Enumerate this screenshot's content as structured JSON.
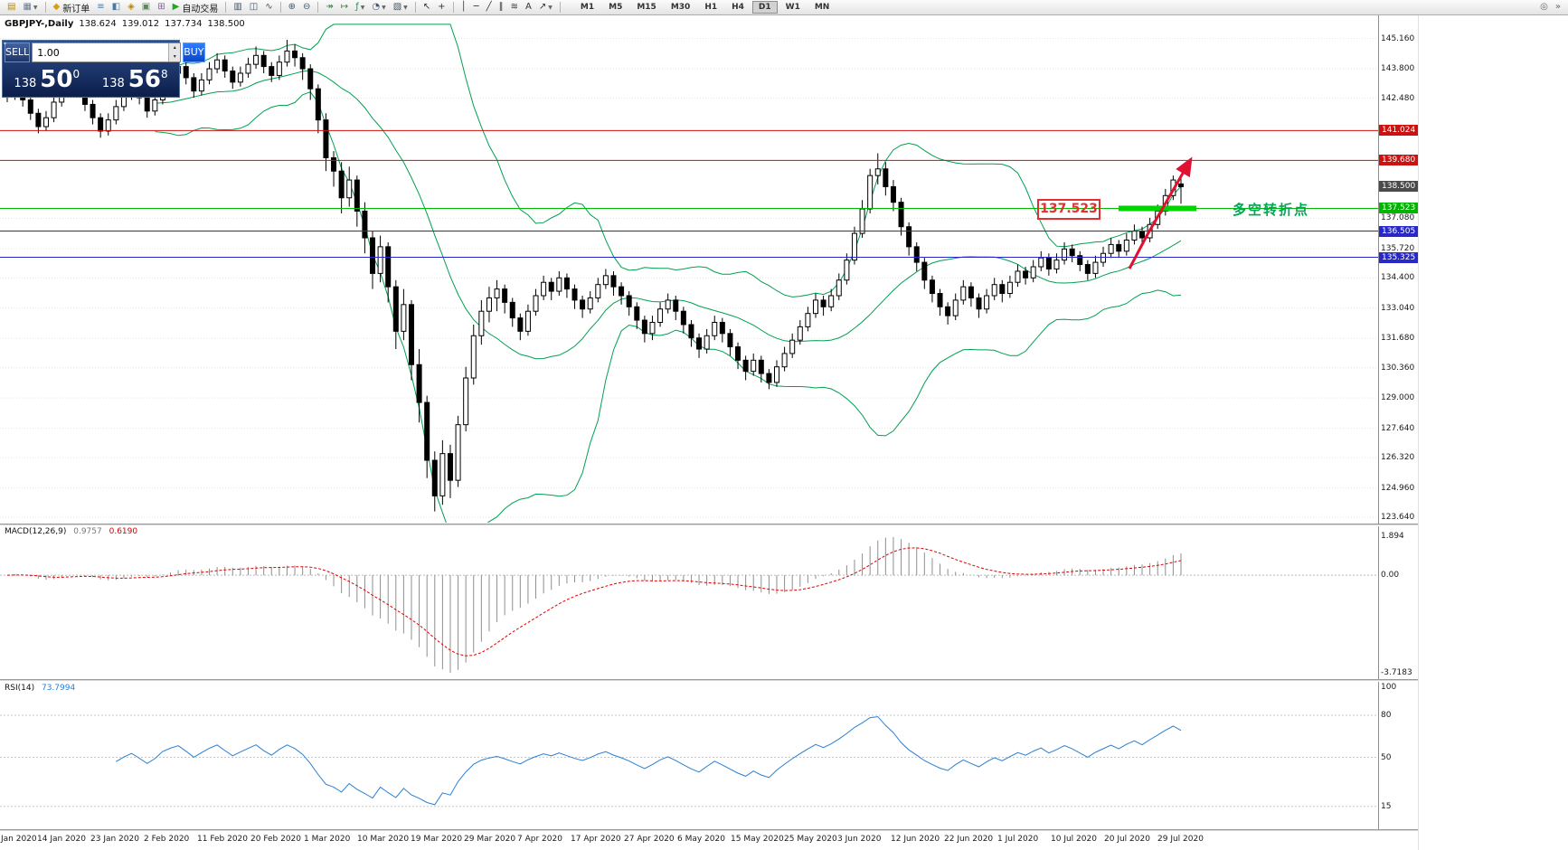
{
  "toolbar": {
    "items": [
      {
        "name": "new-chart",
        "glyph": "▤",
        "color": "#b8860b"
      },
      {
        "name": "profiles",
        "glyph": "▦",
        "color": "#6b7b8c",
        "dropdown": true
      },
      {
        "type": "sep"
      },
      {
        "name": "new-order",
        "glyph": "◆",
        "color": "#d4a017",
        "label": "新订单"
      },
      {
        "name": "market-watch",
        "glyph": "≡",
        "color": "#4a7ba6"
      },
      {
        "name": "data-window",
        "glyph": "◧",
        "color": "#4a7ba6"
      },
      {
        "name": "navigator",
        "glyph": "◈",
        "color": "#b8860b"
      },
      {
        "name": "terminal",
        "glyph": "▣",
        "color": "#5a8a5a"
      },
      {
        "name": "strategy-tester",
        "glyph": "⊞",
        "color": "#8a5aa0"
      },
      {
        "name": "autotrading",
        "glyph": "▶",
        "color": "#1faa1f",
        "label": "自动交易"
      },
      {
        "type": "sep"
      },
      {
        "name": "bar-chart",
        "glyph": "▥",
        "color": "#445566"
      },
      {
        "name": "candlestick-chart",
        "glyph": "◫",
        "color": "#445566"
      },
      {
        "name": "line-chart",
        "glyph": "∿",
        "color": "#445566"
      },
      {
        "type": "sep"
      },
      {
        "name": "zoom-in",
        "glyph": "⊕",
        "color": "#445566"
      },
      {
        "name": "zoom-out",
        "glyph": "⊖",
        "color": "#445566"
      },
      {
        "type": "sep"
      },
      {
        "name": "auto-scroll",
        "glyph": "↠",
        "color": "#3a7d3a"
      },
      {
        "name": "chart-shift",
        "glyph": "↦",
        "color": "#3a7d3a"
      },
      {
        "name": "indicators",
        "glyph": "ƒ",
        "color": "#2e8b57",
        "dropdown": true
      },
      {
        "name": "periods",
        "glyph": "◔",
        "color": "#445566",
        "dropdown": true
      },
      {
        "name": "templates",
        "glyph": "▧",
        "color": "#445566",
        "dropdown": true
      },
      {
        "type": "sep"
      },
      {
        "name": "cursor",
        "glyph": "↖",
        "color": "#333333"
      },
      {
        "name": "crosshair",
        "glyph": "+",
        "color": "#333333"
      },
      {
        "type": "sep"
      },
      {
        "name": "vertical-line",
        "glyph": "│",
        "color": "#333333"
      },
      {
        "name": "horizontal-line",
        "glyph": "─",
        "color": "#333333"
      },
      {
        "name": "trendline",
        "glyph": "╱",
        "color": "#333333"
      },
      {
        "name": "equidistant-channel",
        "glyph": "∥",
        "color": "#333333"
      },
      {
        "name": "fibonacci",
        "glyph": "≋",
        "color": "#333333"
      },
      {
        "name": "text",
        "glyph": "A",
        "color": "#333333"
      },
      {
        "name": "arrows",
        "glyph": "↗",
        "color": "#333333",
        "dropdown": true
      },
      {
        "type": "sep"
      }
    ],
    "timeframes": [
      "M1",
      "M5",
      "M15",
      "M30",
      "H1",
      "H4",
      "D1",
      "W1",
      "MN"
    ],
    "active_timeframe": "D1",
    "right_icons": [
      {
        "name": "toolbar-search",
        "glyph": "◎"
      },
      {
        "name": "toolbar-overflow",
        "glyph": "»"
      }
    ]
  },
  "chart_header": {
    "symbol_period": "GBPJPY-,Daily",
    "open": "138.624",
    "high": "139.012",
    "low": "137.734",
    "close": "138.500"
  },
  "order_panel": {
    "sell_label": "SELL",
    "buy_label": "BUY",
    "volume": "1.00",
    "spin_up": "▴",
    "spin_down": "▾",
    "bid_big": "138",
    "bid_pips": "50",
    "bid_frac": "0",
    "ask_big": "138",
    "ask_pips": "56",
    "ask_frac": "8",
    "collapse_glyph": "▾"
  },
  "price_axis": {
    "regular": [
      "145.160",
      "143.800",
      "142.480",
      "137.080",
      "135.720",
      "134.400",
      "133.040",
      "131.680",
      "130.360",
      "129.000",
      "127.640",
      "126.320",
      "124.960",
      "123.640"
    ],
    "badges": [
      {
        "value": "141.024",
        "color": "#cc1111"
      },
      {
        "value": "139.680",
        "color": "#cc1111"
      },
      {
        "value": "138.500",
        "color": "#4a4a4a"
      },
      {
        "value": "137.523",
        "color": "#00b400"
      },
      {
        "value": "136.505",
        "color": "#2828c8"
      },
      {
        "value": "135.325",
        "color": "#2828c8"
      }
    ]
  },
  "macd": {
    "label": "MACD(12,26,9)",
    "value_main": "0.9757",
    "value_signal": "0.6190",
    "axis_top": "1.894",
    "axis_zero": "0.00",
    "axis_bottom": "-3.7183"
  },
  "rsi": {
    "label": "RSI(14)",
    "value": "73.7994",
    "axis": [
      "100",
      "80",
      "50",
      "15"
    ],
    "levels": [
      80,
      50,
      15
    ]
  },
  "date_axis": [
    "Jan 2020",
    "14 Jan 2020",
    "23 Jan 2020",
    "2 Feb 2020",
    "11 Feb 2020",
    "20 Feb 2020",
    "1 Mar 2020",
    "10 Mar 2020",
    "19 Mar 2020",
    "29 Mar 2020",
    "7 Apr 2020",
    "17 Apr 2020",
    "27 Apr 2020",
    "6 May 2020",
    "15 May 2020",
    "25 May 2020",
    "3 Jun 2020",
    "12 Jun 2020",
    "22 Jun 2020",
    "1 Jul 2020",
    "10 Jul 2020",
    "20 Jul 2020",
    "29 Jul 2020"
  ],
  "annotations": {
    "price_box": "137.523",
    "turning_point_text": "多空转折点",
    "box_color": "#e03030",
    "text_color": "#00a651",
    "segment_color": "#00d400",
    "arrow_color": "#e01030"
  },
  "chart_data": {
    "type": "candlestick",
    "symbol": "GBPJPY",
    "period": "Daily",
    "price_range": [
      123.64,
      145.16
    ],
    "bollinger": {
      "period": 20,
      "deviation": 2
    },
    "macd_params": [
      12,
      26,
      9
    ],
    "rsi_period": 14,
    "styles": {
      "band_color": "#00a050",
      "bull_color": "#ffffff",
      "bear_color": "#000000",
      "wick_color": "#000000",
      "macd_histogram_color": "#8e8e8e",
      "macd_signal_color": "#dd0000",
      "rsi_color": "#2a7fd4",
      "grid_color": "#e4e4e4"
    },
    "horizontal_lines": [
      {
        "price": 141.024,
        "color": "#cc1111",
        "width": 1
      },
      {
        "price": 139.68,
        "color": "#cc1111",
        "width": 1
      },
      {
        "price": 137.523,
        "color": "#00bb00",
        "width": 1
      },
      {
        "price": 136.505,
        "color": "#2828c8",
        "width": 1
      },
      {
        "price": 135.325,
        "color": "#2828c8",
        "width": 1
      }
    ],
    "candles": [
      [
        142.9,
        143.2,
        142.3,
        142.6
      ],
      [
        142.6,
        143.4,
        142.4,
        143.1
      ],
      [
        143.1,
        143.3,
        142.1,
        142.4
      ],
      [
        142.4,
        142.6,
        141.5,
        141.8
      ],
      [
        141.8,
        142.0,
        140.9,
        141.2
      ],
      [
        141.2,
        141.9,
        141.0,
        141.6
      ],
      [
        141.6,
        142.6,
        141.4,
        142.3
      ],
      [
        142.3,
        143.1,
        142.1,
        142.9
      ],
      [
        142.9,
        143.7,
        142.7,
        143.4
      ],
      [
        143.4,
        143.6,
        142.5,
        142.8
      ],
      [
        142.8,
        143.0,
        141.9,
        142.2
      ],
      [
        142.2,
        142.4,
        141.3,
        141.6
      ],
      [
        141.6,
        141.8,
        140.7,
        141.0
      ],
      [
        141.0,
        141.8,
        140.8,
        141.5
      ],
      [
        141.5,
        142.4,
        141.3,
        142.1
      ],
      [
        142.1,
        142.9,
        141.9,
        142.6
      ],
      [
        142.6,
        143.3,
        142.4,
        143.0
      ],
      [
        143.0,
        143.2,
        142.2,
        142.5
      ],
      [
        142.5,
        142.7,
        141.6,
        141.9
      ],
      [
        141.9,
        142.7,
        141.7,
        142.4
      ],
      [
        142.4,
        143.5,
        142.2,
        143.2
      ],
      [
        143.2,
        143.9,
        143.0,
        143.6
      ],
      [
        143.6,
        144.2,
        143.4,
        143.9
      ],
      [
        143.9,
        144.1,
        143.1,
        143.4
      ],
      [
        143.4,
        143.6,
        142.5,
        142.8
      ],
      [
        142.8,
        143.6,
        142.6,
        143.3
      ],
      [
        143.3,
        144.1,
        143.1,
        143.8
      ],
      [
        143.8,
        144.5,
        143.6,
        144.2
      ],
      [
        144.2,
        144.4,
        143.4,
        143.7
      ],
      [
        143.7,
        143.9,
        142.9,
        143.2
      ],
      [
        143.2,
        143.9,
        143.0,
        143.6
      ],
      [
        143.6,
        144.3,
        143.4,
        144.0
      ],
      [
        144.0,
        144.8,
        143.8,
        144.4
      ],
      [
        144.4,
        144.6,
        143.6,
        143.9
      ],
      [
        143.9,
        144.1,
        143.2,
        143.5
      ],
      [
        143.5,
        144.4,
        143.3,
        144.1
      ],
      [
        144.1,
        145.1,
        143.9,
        144.6
      ],
      [
        144.6,
        144.9,
        143.9,
        144.3
      ],
      [
        144.3,
        144.5,
        143.3,
        143.8
      ],
      [
        143.8,
        144.0,
        142.4,
        142.9
      ],
      [
        142.9,
        143.1,
        140.9,
        141.5
      ],
      [
        141.5,
        141.8,
        139.2,
        139.8
      ],
      [
        139.8,
        140.1,
        138.5,
        139.2
      ],
      [
        139.2,
        139.6,
        137.3,
        138.0
      ],
      [
        138.0,
        139.4,
        137.6,
        138.8
      ],
      [
        138.8,
        139.0,
        136.7,
        137.4
      ],
      [
        137.4,
        137.8,
        135.5,
        136.2
      ],
      [
        136.2,
        136.5,
        133.9,
        134.6
      ],
      [
        134.6,
        136.3,
        134.2,
        135.8
      ],
      [
        135.8,
        136.0,
        133.3,
        134.0
      ],
      [
        134.0,
        134.3,
        131.2,
        132.0
      ],
      [
        132.0,
        133.9,
        131.6,
        133.2
      ],
      [
        133.2,
        133.4,
        129.8,
        130.5
      ],
      [
        130.5,
        131.2,
        127.9,
        128.8
      ],
      [
        128.8,
        129.1,
        125.4,
        126.2
      ],
      [
        126.2,
        126.6,
        123.9,
        124.6
      ],
      [
        124.6,
        127.1,
        124.2,
        126.5
      ],
      [
        126.5,
        126.9,
        124.5,
        125.3
      ],
      [
        125.3,
        128.2,
        125.0,
        127.8
      ],
      [
        127.8,
        130.4,
        127.5,
        129.9
      ],
      [
        129.9,
        132.3,
        129.6,
        131.8
      ],
      [
        131.8,
        133.4,
        131.4,
        132.9
      ],
      [
        132.9,
        134.0,
        132.4,
        133.5
      ],
      [
        133.5,
        134.3,
        132.9,
        133.9
      ],
      [
        133.9,
        134.1,
        132.8,
        133.3
      ],
      [
        133.3,
        133.5,
        132.2,
        132.6
      ],
      [
        132.6,
        132.8,
        131.6,
        132.0
      ],
      [
        132.0,
        133.2,
        131.8,
        132.9
      ],
      [
        132.9,
        133.9,
        132.7,
        133.6
      ],
      [
        133.6,
        134.5,
        133.4,
        134.2
      ],
      [
        134.2,
        134.4,
        133.4,
        133.8
      ],
      [
        133.8,
        134.7,
        133.6,
        134.4
      ],
      [
        134.4,
        134.6,
        133.5,
        133.9
      ],
      [
        133.9,
        134.1,
        133.0,
        133.4
      ],
      [
        133.4,
        133.6,
        132.6,
        133.0
      ],
      [
        133.0,
        133.8,
        132.8,
        133.5
      ],
      [
        133.5,
        134.4,
        133.3,
        134.1
      ],
      [
        134.1,
        134.8,
        133.9,
        134.5
      ],
      [
        134.5,
        134.7,
        133.6,
        134.0
      ],
      [
        134.0,
        134.2,
        133.2,
        133.6
      ],
      [
        133.6,
        133.8,
        132.7,
        133.1
      ],
      [
        133.1,
        133.3,
        132.1,
        132.5
      ],
      [
        132.5,
        132.7,
        131.5,
        131.9
      ],
      [
        131.9,
        132.7,
        131.6,
        132.4
      ],
      [
        132.4,
        133.3,
        132.2,
        133.0
      ],
      [
        133.0,
        133.7,
        132.8,
        133.4
      ],
      [
        133.4,
        133.6,
        132.5,
        132.9
      ],
      [
        132.9,
        133.1,
        131.9,
        132.3
      ],
      [
        132.3,
        132.5,
        131.3,
        131.7
      ],
      [
        131.7,
        131.9,
        130.8,
        131.2
      ],
      [
        131.2,
        132.1,
        131.0,
        131.8
      ],
      [
        131.8,
        132.7,
        131.6,
        132.4
      ],
      [
        132.4,
        132.6,
        131.5,
        131.9
      ],
      [
        131.9,
        132.1,
        130.9,
        131.3
      ],
      [
        131.3,
        131.5,
        130.3,
        130.7
      ],
      [
        130.7,
        130.9,
        129.8,
        130.2
      ],
      [
        130.2,
        131.0,
        130.0,
        130.7
      ],
      [
        130.7,
        130.9,
        129.7,
        130.1
      ],
      [
        130.1,
        130.3,
        129.4,
        129.7
      ],
      [
        129.7,
        130.7,
        129.5,
        130.4
      ],
      [
        130.4,
        131.3,
        130.2,
        131.0
      ],
      [
        131.0,
        131.9,
        130.8,
        131.6
      ],
      [
        131.6,
        132.5,
        131.4,
        132.2
      ],
      [
        132.2,
        133.1,
        132.0,
        132.8
      ],
      [
        132.8,
        133.7,
        132.6,
        133.4
      ],
      [
        133.4,
        133.6,
        132.7,
        133.1
      ],
      [
        133.1,
        133.9,
        132.9,
        133.6
      ],
      [
        133.6,
        134.6,
        133.4,
        134.3
      ],
      [
        134.3,
        135.5,
        134.1,
        135.2
      ],
      [
        135.2,
        136.7,
        135.0,
        136.4
      ],
      [
        136.4,
        137.9,
        136.2,
        137.5
      ],
      [
        137.5,
        139.3,
        137.3,
        139.0
      ],
      [
        139.0,
        140.0,
        138.6,
        139.3
      ],
      [
        139.3,
        139.6,
        138.1,
        138.5
      ],
      [
        138.5,
        138.8,
        137.4,
        137.8
      ],
      [
        137.8,
        138.0,
        136.3,
        136.7
      ],
      [
        136.7,
        136.9,
        135.4,
        135.8
      ],
      [
        135.8,
        136.0,
        134.7,
        135.1
      ],
      [
        135.1,
        135.3,
        133.9,
        134.3
      ],
      [
        134.3,
        134.5,
        133.3,
        133.7
      ],
      [
        133.7,
        133.9,
        132.7,
        133.1
      ],
      [
        133.1,
        133.3,
        132.3,
        132.7
      ],
      [
        132.7,
        133.7,
        132.5,
        133.4
      ],
      [
        133.4,
        134.3,
        133.2,
        134.0
      ],
      [
        134.0,
        134.2,
        133.1,
        133.5
      ],
      [
        133.5,
        133.7,
        132.6,
        133.0
      ],
      [
        133.0,
        133.9,
        132.8,
        133.6
      ],
      [
        133.6,
        134.4,
        133.4,
        134.1
      ],
      [
        134.1,
        134.3,
        133.3,
        133.7
      ],
      [
        133.7,
        134.5,
        133.5,
        134.2
      ],
      [
        134.2,
        135.0,
        134.0,
        134.7
      ],
      [
        134.7,
        134.9,
        134.1,
        134.4
      ],
      [
        134.4,
        135.2,
        134.2,
        134.9
      ],
      [
        134.9,
        135.6,
        134.7,
        135.3
      ],
      [
        135.3,
        135.5,
        134.5,
        134.8
      ],
      [
        134.8,
        135.5,
        134.6,
        135.2
      ],
      [
        135.2,
        136.0,
        135.0,
        135.7
      ],
      [
        135.7,
        135.9,
        135.1,
        135.4
      ],
      [
        135.4,
        135.6,
        134.7,
        135.0
      ],
      [
        135.0,
        135.2,
        134.3,
        134.6
      ],
      [
        134.6,
        135.4,
        134.4,
        135.1
      ],
      [
        135.1,
        135.8,
        134.9,
        135.5
      ],
      [
        135.5,
        136.2,
        135.3,
        135.9
      ],
      [
        135.9,
        136.1,
        135.3,
        135.6
      ],
      [
        135.6,
        136.4,
        135.4,
        136.1
      ],
      [
        136.1,
        136.8,
        135.9,
        136.5
      ],
      [
        136.5,
        136.7,
        135.9,
        136.2
      ],
      [
        136.2,
        137.1,
        136.0,
        136.8
      ],
      [
        136.8,
        137.7,
        136.6,
        137.4
      ],
      [
        137.4,
        138.4,
        137.2,
        138.1
      ],
      [
        138.1,
        139.0,
        137.9,
        138.8
      ],
      [
        138.624,
        139.012,
        137.734,
        138.5
      ]
    ]
  }
}
